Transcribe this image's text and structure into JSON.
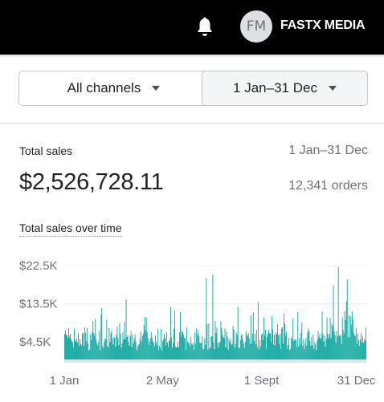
{
  "topbar": {
    "notifications_icon": "bell-icon",
    "avatar_initials": "FM",
    "store_name": "FASTX MEDIA"
  },
  "filters": {
    "channel_label": "All channels",
    "date_range_label": "1 Jan–31 Dec"
  },
  "summary": {
    "label": "Total sales",
    "range": "1 Jan–31 Dec",
    "total": "$2,526,728.11",
    "orders": "12,341 orders"
  },
  "colors": {
    "bar": "#00a19a",
    "topbar": "#000000"
  },
  "chart_data": {
    "type": "bar",
    "title": "Total sales over time",
    "y_ticks": [
      "$22.5K",
      "$13.5K",
      "$4.5K"
    ],
    "y_tick_values": [
      22500,
      13500,
      4500
    ],
    "x_ticks": [
      "1 Jan",
      "2 May",
      "1 Sept",
      "31 Dec"
    ],
    "x_tick_days": [
      1,
      122,
      244,
      365
    ],
    "ylim": [
      0,
      25000
    ],
    "grid": true,
    "series": [
      {
        "values": [
          6400,
          7300,
          6200,
          6100,
          5400,
          7800,
          5800,
          6400,
          5200,
          4600,
          4500,
          3200,
          7700,
          5000,
          4500,
          5300,
          4400,
          6500,
          3600,
          5200,
          4100,
          3700,
          6600,
          6600,
          3600,
          8000,
          6700,
          4700,
          7800,
          4200,
          2600,
          2700,
          6300,
          4900,
          6800,
          9500,
          6600,
          6100,
          9900,
          5200,
          4200,
          3700,
          4500,
          7100,
          2600,
          10900,
          12600,
          3600,
          3100,
          4500,
          5400,
          5100,
          9800,
          3600,
          3200,
          7800,
          4500,
          6600,
          7300,
          5300,
          3900,
          5600,
          5600,
          3500,
          6200,
          8200,
          5400,
          3800,
          9000,
          6500,
          3200,
          4200,
          6800,
          5100,
          9300,
          5300,
          14500,
          5700,
          6100,
          4400,
          3600,
          5900,
          7100,
          3300,
          6200,
          4200,
          5200,
          6400,
          4600,
          2600,
          3200,
          3800,
          4000,
          5200,
          7000,
          4500,
          5900,
          6500,
          8500,
          10400,
          7300,
          10200,
          6800,
          5300,
          3800,
          4600,
          5400,
          6900,
          5500,
          4700,
          4300,
          3500,
          6100,
          4500,
          3800,
          7600,
          2600,
          3600,
          3100,
          7600,
          2500,
          4600,
          5200,
          6400,
          5500,
          3700,
          6800,
          4400,
          3300,
          4800,
          5100,
          12800,
          5600,
          3100,
          4300,
          7600,
          11900,
          3400,
          3200,
          3300,
          4500,
          3300,
          6800,
          11600,
          5700,
          7000,
          6900,
          6300,
          5500,
          5300,
          2700,
          8000,
          4500,
          4300,
          4300,
          3500,
          5700,
          4100,
          3800,
          4300,
          2600,
          6700,
          4100,
          7700,
          6100,
          7300,
          5900,
          4300,
          4300,
          4200,
          5900,
          2800,
          2900,
          5300,
          3900,
          19600,
          8700,
          2700,
          8900,
          3000,
          3200,
          5700,
          5900,
          20400,
          4400,
          2800,
          9500,
          6600,
          7900,
          4300,
          3200,
          4400,
          4500,
          9400,
          7800,
          6200,
          5700,
          5400,
          7700,
          3200,
          7000,
          5800,
          2700,
          5200,
          4500,
          5200,
          3800,
          4000,
          8300,
          7400,
          3200,
          4100,
          6800,
          6200,
          12800,
          3100,
          3100,
          4900,
          6100,
          6400,
          5100,
          4200,
          3100,
          4500,
          7000,
          6300,
          5900,
          6600,
          5400,
          4100,
          10800,
          4100,
          6500,
          11500,
          4700,
          6500,
          4000,
          7400,
          3300,
          13900,
          2800,
          5000,
          3500,
          6300,
          6500,
          4900,
          10300,
          6100,
          7400,
          2800,
          5700,
          6400,
          7400,
          6600,
          6500,
          4300,
          10600,
          7500,
          3900,
          6200,
          3600,
          6800,
          6300,
          8700,
          6100,
          4000,
          6400,
          2900,
          7600,
          8000,
          4100,
          11200,
          8900,
          6000,
          6900,
          3000,
          3800,
          5500,
          2600,
          2900,
          5500,
          5400,
          10100,
          4800,
          5000,
          5100,
          5000,
          3300,
          11600,
          3400,
          5500,
          3900,
          6700,
          9100,
          3600,
          5200,
          2800,
          4100,
          5500,
          3600,
          6700,
          7700,
          7100,
          4800,
          3700,
          5600,
          3700,
          6300,
          2800,
          4400,
          3900,
          2600,
          4900,
          7100,
          5600,
          6500,
          5200,
          5500,
          11700,
          6500,
          4600,
          6000,
          3400,
          5200,
          10300,
          6500,
          5400,
          6400,
          10200,
          5400,
          8800,
          8300,
          17900,
          7000,
          6100,
          4300,
          7100,
          5900,
          22200,
          5900,
          6300,
          6000,
          4100,
          10300,
          7400,
          6500,
          11800,
          9700,
          14100,
          19300,
          5600,
          10800,
          5700,
          10600,
          8600,
          11700,
          9900,
          6700,
          6000,
          6000,
          7900,
          4100,
          6500,
          5000,
          3600,
          5100,
          6600,
          4400,
          5800,
          4300,
          5200,
          4800,
          8000
        ]
      }
    ]
  }
}
